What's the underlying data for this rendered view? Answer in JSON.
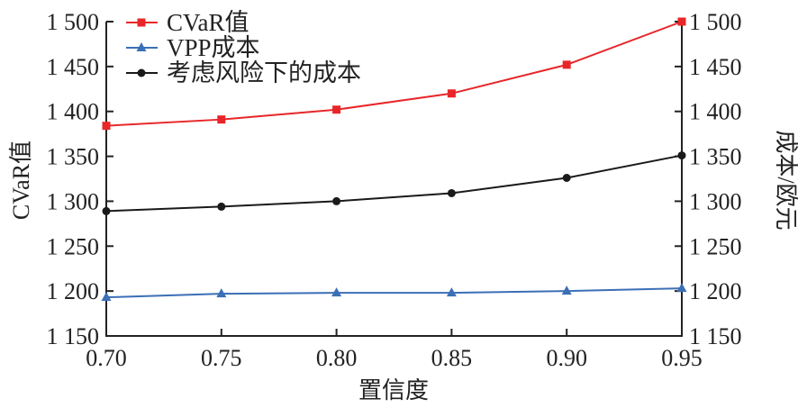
{
  "chart_data": {
    "type": "line",
    "x": [
      0.7,
      0.75,
      0.8,
      0.85,
      0.9,
      0.95
    ],
    "x_tick_labels": [
      "0.70",
      "0.75",
      "0.80",
      "0.85",
      "0.90",
      "0.95"
    ],
    "xlabel": "置信度",
    "ylabel_left": "CVaR值",
    "ylabel_right": "成本/欧元",
    "ylim": [
      1150,
      1500
    ],
    "y_ticks": [
      1150,
      1200,
      1250,
      1300,
      1350,
      1400,
      1450,
      1500
    ],
    "y_tick_labels": [
      "1 150",
      "1 200",
      "1 250",
      "1 300",
      "1 350",
      "1 400",
      "1 450",
      "1 500"
    ],
    "legend_position": "top-left",
    "series": [
      {
        "name": "CVaR值",
        "color": "#e8262a",
        "marker": "square",
        "values": [
          1384,
          1391,
          1402,
          1420,
          1452,
          1500
        ]
      },
      {
        "name": "VPP成本",
        "color": "#3b6fb6",
        "marker": "triangle",
        "values": [
          1193,
          1197,
          1198,
          1198,
          1200,
          1203
        ]
      },
      {
        "name": "考虑风险下的成本",
        "color": "#1a1a1a",
        "marker": "circle",
        "values": [
          1289,
          1294,
          1300,
          1309,
          1326,
          1351
        ]
      }
    ]
  }
}
